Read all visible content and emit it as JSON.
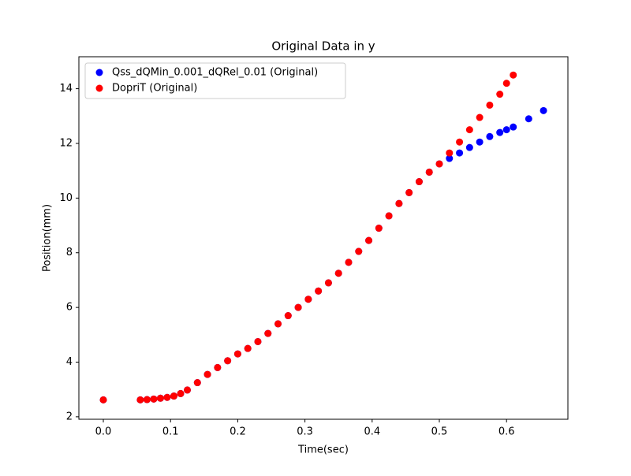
{
  "chart_data": {
    "type": "scatter",
    "title": "Original Data in y",
    "x_label": "Time(sec)",
    "y_label": "Position(mm)",
    "series": [
      {
        "name": "Qss_dQMin_0.001_dQRel_0.01 (Original)",
        "color": "#0000ff",
        "x": [
          0,
          0.055,
          0.065,
          0.075,
          0.085,
          0.095,
          0.105,
          0.115,
          0.125,
          0.14,
          0.155,
          0.17,
          0.185,
          0.2,
          0.215,
          0.23,
          0.245,
          0.26,
          0.275,
          0.29,
          0.305,
          0.32,
          0.335,
          0.35,
          0.365,
          0.38,
          0.395,
          0.41,
          0.425,
          0.44,
          0.455,
          0.47,
          0.485,
          0.5,
          0.515,
          0.53,
          0.545,
          0.56,
          0.575,
          0.59,
          0.6,
          0.61,
          0.633,
          0.655
        ],
        "values": [
          2.62,
          2.62,
          2.63,
          2.65,
          2.68,
          2.71,
          2.76,
          2.85,
          2.98,
          3.25,
          3.55,
          3.8,
          4.05,
          4.3,
          4.5,
          4.75,
          5.05,
          5.4,
          5.7,
          6.0,
          6.3,
          6.6,
          6.9,
          7.25,
          7.65,
          8.05,
          8.45,
          8.9,
          9.35,
          9.8,
          10.2,
          10.6,
          10.95,
          11.25,
          11.45,
          11.65,
          11.85,
          12.05,
          12.25,
          12.4,
          12.5,
          12.6,
          12.9,
          13.2
        ]
      },
      {
        "name": "DopriT (Original)",
        "color": "#ff0000",
        "x": [
          0,
          0.055,
          0.065,
          0.075,
          0.085,
          0.095,
          0.105,
          0.115,
          0.125,
          0.14,
          0.155,
          0.17,
          0.185,
          0.2,
          0.215,
          0.23,
          0.245,
          0.26,
          0.275,
          0.29,
          0.305,
          0.32,
          0.335,
          0.35,
          0.365,
          0.38,
          0.395,
          0.41,
          0.425,
          0.44,
          0.455,
          0.47,
          0.485,
          0.5,
          0.515,
          0.53,
          0.545,
          0.56,
          0.575,
          0.59,
          0.6,
          0.61
        ],
        "values": [
          2.62,
          2.62,
          2.63,
          2.65,
          2.68,
          2.71,
          2.76,
          2.85,
          2.98,
          3.25,
          3.55,
          3.8,
          4.05,
          4.3,
          4.5,
          4.75,
          5.05,
          5.4,
          5.7,
          6.0,
          6.3,
          6.6,
          6.9,
          7.25,
          7.65,
          8.05,
          8.45,
          8.9,
          9.35,
          9.8,
          10.2,
          10.6,
          10.95,
          11.25,
          11.65,
          12.05,
          12.5,
          12.95,
          13.4,
          13.8,
          14.2,
          14.5
        ]
      }
    ],
    "xlim": [
      -0.0364,
      0.6913
    ],
    "ylim": [
      1.91,
      15.17
    ],
    "xticks": [
      {
        "value": 0,
        "label": "0.0"
      },
      0.1,
      0.2,
      0.3,
      0.4,
      0.5,
      0.6
    ],
    "yticks": [
      2,
      4,
      6,
      8,
      10,
      12,
      14
    ],
    "legend": "upper left"
  }
}
